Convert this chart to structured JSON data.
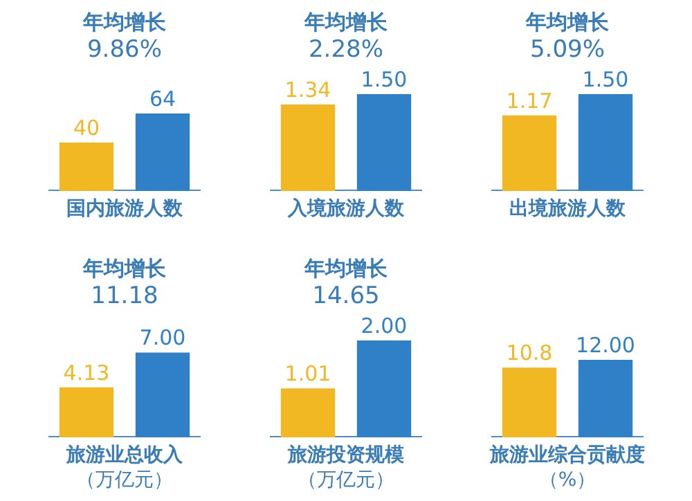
{
  "chart_data": [
    {
      "type": "bar",
      "title": "年均增长",
      "subtitle": "9.86%",
      "xlabel": "国内旅游人数",
      "categories": [
        null,
        null
      ],
      "values": [
        40,
        64
      ],
      "colors": [
        "#f2b823",
        "#2f80c6"
      ],
      "data_labels": true,
      "grid": false,
      "legend": false
    },
    {
      "type": "bar",
      "title": "年均增长",
      "subtitle": "2.28%",
      "xlabel": "入境旅游人数",
      "categories": [
        null,
        null
      ],
      "values": [
        1.34,
        1.5
      ],
      "value_labels": [
        "1.34",
        "1.50"
      ],
      "colors": [
        "#f2b823",
        "#2f80c6"
      ],
      "grid": false,
      "legend": false
    },
    {
      "type": "bar",
      "title": "年均增长",
      "subtitle": "5.09%",
      "xlabel": "出境旅游人数",
      "categories": [
        null,
        null
      ],
      "values": [
        1.17,
        1.5
      ],
      "value_labels": [
        "1.17",
        "1.50"
      ],
      "colors": [
        "#f2b823",
        "#2f80c6"
      ],
      "grid": false,
      "legend": false
    },
    {
      "type": "bar",
      "title": "年均增长",
      "subtitle": "11.18",
      "xlabel": "旅游业总收入（万亿元）",
      "categories": [
        null,
        null
      ],
      "values": [
        4.13,
        7.0
      ],
      "value_labels": [
        "4.13",
        "7.00"
      ],
      "colors": [
        "#f2b823",
        "#2f80c6"
      ],
      "grid": false,
      "legend": false
    },
    {
      "type": "bar",
      "title": "年均增长",
      "subtitle": "14.65",
      "xlabel": "旅游投资规模（万亿元）",
      "categories": [
        null,
        null
      ],
      "values": [
        1.01,
        2.0
      ],
      "value_labels": [
        "1.01",
        "2.00"
      ],
      "colors": [
        "#f2b823",
        "#2f80c6"
      ],
      "grid": false,
      "legend": false
    },
    {
      "type": "bar",
      "xlabel": "旅游业综合贡献度（%）",
      "categories": [
        null,
        null
      ],
      "values": [
        10.8,
        12.0
      ],
      "value_labels": [
        "10.8",
        "12.00"
      ],
      "colors": [
        "#f2b823",
        "#2f80c6"
      ],
      "grid": false,
      "legend": false
    }
  ]
}
